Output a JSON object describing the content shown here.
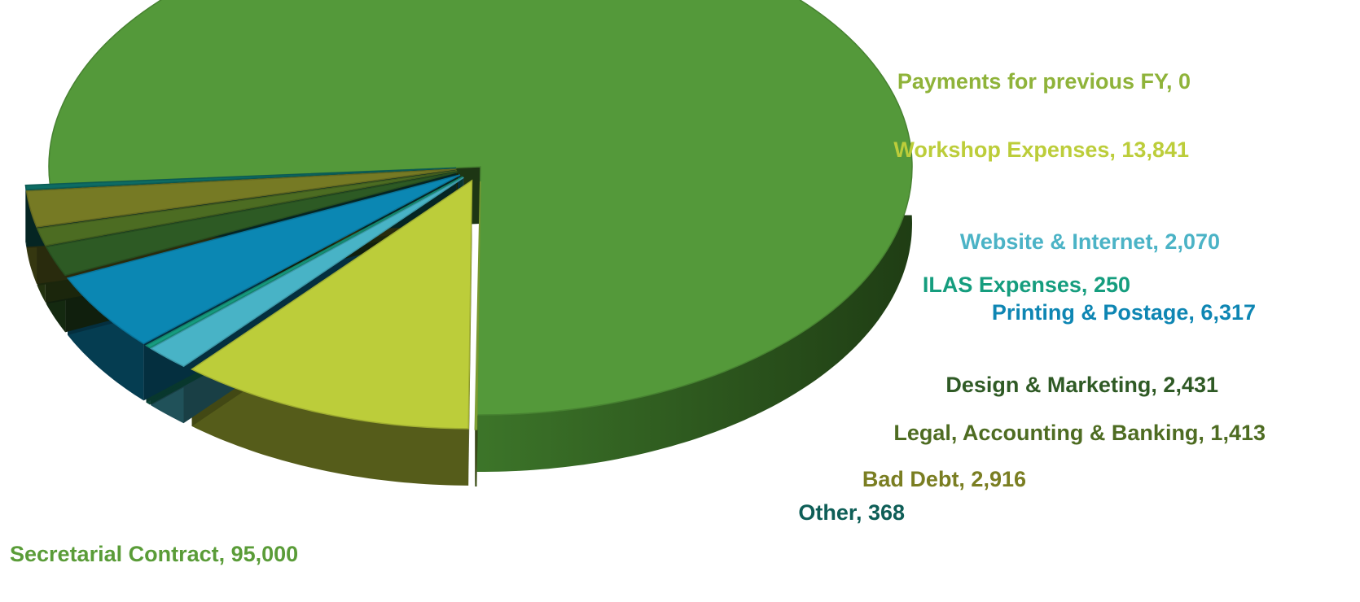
{
  "chart_data": {
    "type": "pie",
    "style": "3d-exploded",
    "title": "",
    "legend": "none",
    "slices": [
      {
        "label": "Secretarial Contract",
        "value": 95000,
        "value_text": "95,000",
        "color": "#54993a",
        "label_color": "#5a9c38"
      },
      {
        "label": "Payments for previous FY",
        "value": 0,
        "value_text": "0",
        "color": "#8db43a",
        "label_color": "#8fb33a"
      },
      {
        "label": "Workshop Expenses",
        "value": 13841,
        "value_text": "13,841",
        "color": "#bccd3a",
        "label_color": "#bccd3a"
      },
      {
        "label": "Website & Internet",
        "value": 2070,
        "value_text": "2,070",
        "color": "#48b3c6",
        "label_color": "#4bb3c6"
      },
      {
        "label": "ILAS Expenses",
        "value": 250,
        "value_text": "250",
        "color": "#169c80",
        "label_color": "#159d7e"
      },
      {
        "label": "Printing & Postage",
        "value": 6317,
        "value_text": "6,317",
        "color": "#0b87b3",
        "label_color": "#0e86b3"
      },
      {
        "label": "Design & Marketing",
        "value": 2431,
        "value_text": "2,431",
        "color": "#2d5a24",
        "label_color": "#2f5a25"
      },
      {
        "label": "Legal, Accounting & Banking",
        "value": 1413,
        "value_text": "1,413",
        "color": "#4c6c22",
        "label_color": "#4e6c22"
      },
      {
        "label": "Bad Debt",
        "value": 2916,
        "value_text": "2,916",
        "color": "#767a24",
        "label_color": "#7a7e22"
      },
      {
        "label": "Other",
        "value": 368,
        "value_text": "368",
        "color": "#0d6b63",
        "label_color": "#0e5e57"
      }
    ]
  }
}
